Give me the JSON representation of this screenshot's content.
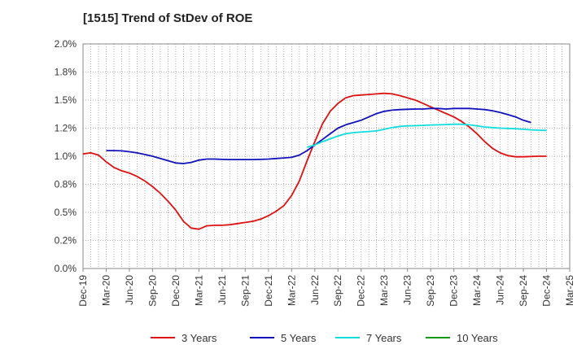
{
  "chart_data": {
    "type": "line",
    "title": "[1515]  Trend of StDev of ROE",
    "xlabel": "",
    "ylabel": "",
    "ylim": [
      0,
      2.0
    ],
    "y_ticks": [
      0.0,
      0.25,
      0.5,
      0.75,
      1.0,
      1.25,
      1.5,
      1.75,
      2.0
    ],
    "y_tick_labels": [
      "0.0%",
      "0.2%",
      "0.5%",
      "0.8%",
      "1.0%",
      "1.2%",
      "1.5%",
      "1.8%",
      "2.0%"
    ],
    "x_tick_labels": [
      "Dec-19",
      "Mar-20",
      "Jun-20",
      "Sep-20",
      "Dec-20",
      "Mar-21",
      "Jun-21",
      "Sep-21",
      "Dec-21",
      "Mar-22",
      "Jun-22",
      "Sep-22",
      "Dec-22",
      "Mar-23",
      "Jun-23",
      "Sep-23",
      "Dec-23",
      "Mar-24",
      "Jun-24",
      "Sep-24",
      "Dec-24",
      "Mar-25"
    ],
    "grid": true,
    "legend_position": "bottom",
    "series": [
      {
        "name": "3 Years",
        "color": "#dd1111",
        "start_index": 0,
        "values": [
          1.02,
          1.03,
          1.01,
          0.95,
          0.9,
          0.87,
          0.85,
          0.82,
          0.78,
          0.73,
          0.67,
          0.6,
          0.52,
          0.42,
          0.36,
          0.35,
          0.38,
          0.385,
          0.385,
          0.39,
          0.4,
          0.41,
          0.42,
          0.44,
          0.47,
          0.51,
          0.56,
          0.65,
          0.78,
          0.96,
          1.13,
          1.29,
          1.4,
          1.47,
          1.52,
          1.54,
          1.545,
          1.55,
          1.555,
          1.56,
          1.555,
          1.54,
          1.52,
          1.5,
          1.47,
          1.44,
          1.41,
          1.38,
          1.35,
          1.31,
          1.26,
          1.2,
          1.13,
          1.07,
          1.03,
          1.005,
          0.995,
          0.995,
          0.998,
          1.0,
          1.0
        ]
      },
      {
        "name": "5 Years",
        "color": "#1111bb",
        "start_index": 3,
        "values": [
          1.05,
          1.05,
          1.048,
          1.04,
          1.03,
          1.015,
          1.0,
          0.98,
          0.96,
          0.94,
          0.935,
          0.945,
          0.965,
          0.975,
          0.975,
          0.972,
          0.97,
          0.97,
          0.97,
          0.97,
          0.972,
          0.975,
          0.98,
          0.985,
          0.99,
          1.01,
          1.05,
          1.1,
          1.15,
          1.2,
          1.25,
          1.28,
          1.3,
          1.32,
          1.35,
          1.38,
          1.4,
          1.41,
          1.415,
          1.418,
          1.42,
          1.42,
          1.425,
          1.425,
          1.42,
          1.425,
          1.425,
          1.425,
          1.42,
          1.415,
          1.405,
          1.39,
          1.37,
          1.35,
          1.32,
          1.3
        ]
      },
      {
        "name": "7 Years",
        "color": "#11dddd",
        "start_index": 29,
        "values": [
          1.08,
          1.1,
          1.13,
          1.155,
          1.18,
          1.2,
          1.21,
          1.215,
          1.22,
          1.225,
          1.24,
          1.255,
          1.265,
          1.27,
          1.272,
          1.275,
          1.278,
          1.28,
          1.282,
          1.285,
          1.285,
          1.28,
          1.27,
          1.26,
          1.255,
          1.25,
          1.248,
          1.245,
          1.24,
          1.235,
          1.232,
          1.23
        ]
      },
      {
        "name": "10 Years",
        "color": "#119911",
        "start_index": 0,
        "values": []
      }
    ]
  }
}
